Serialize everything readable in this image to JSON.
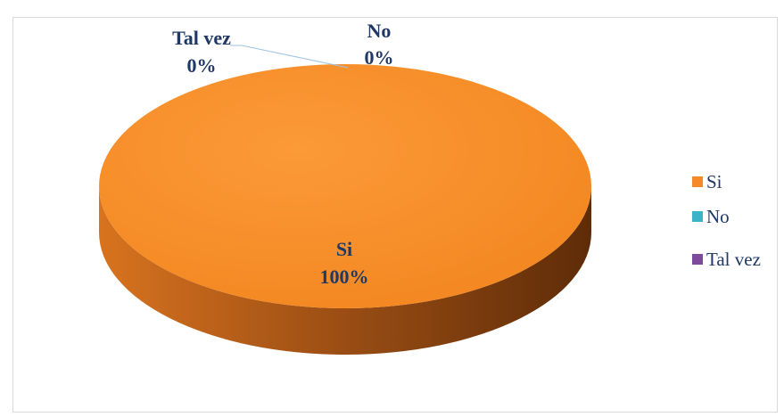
{
  "chart_data": {
    "type": "pie",
    "title": "",
    "categories": [
      "Si",
      "No",
      "Tal vez"
    ],
    "values": [
      100,
      0,
      0
    ],
    "series": [
      {
        "values": [
          100,
          0,
          0
        ]
      }
    ],
    "data_labels": [
      {
        "category": "Si",
        "percent": "100%"
      },
      {
        "category": "No",
        "percent": "0%"
      },
      {
        "category": "Tal vez",
        "percent": "0%"
      }
    ],
    "legend": {
      "placement": "right",
      "entries": [
        {
          "label": "Si",
          "color": "#f58a28"
        },
        {
          "label": "No",
          "color": "#3cb4c8"
        },
        {
          "label": "Tal vez",
          "color": "#7d4a9c"
        }
      ]
    },
    "style": "3d",
    "colors": {
      "Si": "#f58a28",
      "No": "#3cb4c8",
      "Tal vez": "#7d4a9c",
      "label_text": "#1f3864"
    }
  }
}
